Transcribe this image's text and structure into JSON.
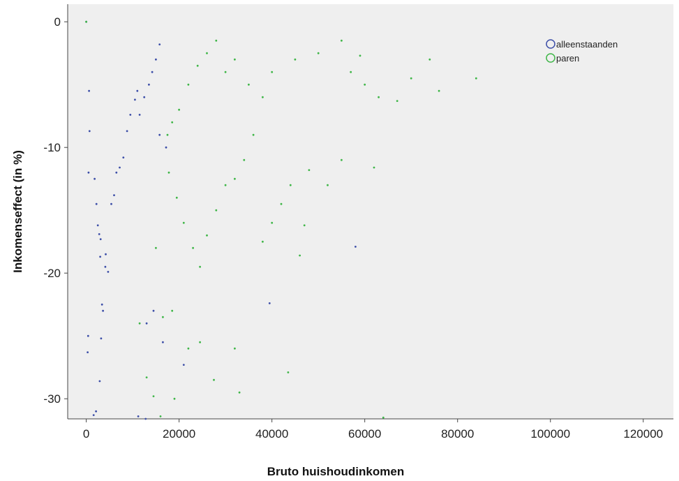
{
  "chart_data": {
    "type": "scatter",
    "xlabel": "Bruto huishoudinkomen",
    "ylabel": "Inkomenseffect (in %)",
    "xlim": [
      -4000,
      126500
    ],
    "ylim": [
      -31.6,
      1.4
    ],
    "x_ticks": [
      0,
      20000,
      40000,
      60000,
      80000,
      100000,
      120000
    ],
    "y_ticks": [
      0,
      -10,
      -20,
      -30
    ],
    "x_tick_labels": [
      "0",
      "20000",
      "40000",
      "60000",
      "80000",
      "100000",
      "120000"
    ],
    "y_tick_labels": [
      "0",
      "-10",
      "-20",
      "-30"
    ],
    "grid": false,
    "legend_position": "top-right",
    "background": "#efefef",
    "series": [
      {
        "name": "alleenstaanden",
        "color": "#3d4fa8",
        "marker": "circle",
        "points": [
          [
            0,
            0
          ],
          [
            600,
            -5.5
          ],
          [
            700,
            -8.7
          ],
          [
            500,
            -12
          ],
          [
            400,
            -25
          ],
          [
            300,
            -26.3
          ],
          [
            1800,
            -12.5
          ],
          [
            2200,
            -14.5
          ],
          [
            2500,
            -16.2
          ],
          [
            2800,
            -16.9
          ],
          [
            3100,
            -17.3
          ],
          [
            3000,
            -18.7
          ],
          [
            3400,
            -22.5
          ],
          [
            3600,
            -23
          ],
          [
            4200,
            -18.5
          ],
          [
            4100,
            -19.5
          ],
          [
            4700,
            -19.9
          ],
          [
            3200,
            -25.2
          ],
          [
            2900,
            -28.6
          ],
          [
            2100,
            -31
          ],
          [
            1600,
            -31.3
          ],
          [
            5400,
            -14.5
          ],
          [
            6000,
            -13.8
          ],
          [
            6500,
            -12
          ],
          [
            7200,
            -11.6
          ],
          [
            8000,
            -10.8
          ],
          [
            8800,
            -8.7
          ],
          [
            9500,
            -7.4
          ],
          [
            10500,
            -6.2
          ],
          [
            11000,
            -5.5
          ],
          [
            11500,
            -7.4
          ],
          [
            12500,
            -6
          ],
          [
            13500,
            -5
          ],
          [
            14200,
            -4
          ],
          [
            15000,
            -3
          ],
          [
            15800,
            -1.8
          ],
          [
            11200,
            -31.4
          ],
          [
            12800,
            -31.6
          ],
          [
            13000,
            -24
          ],
          [
            14500,
            -23
          ],
          [
            16500,
            -25.5
          ],
          [
            21000,
            -27.3
          ],
          [
            39500,
            -22.4
          ],
          [
            58000,
            -17.9
          ],
          [
            15800,
            -9
          ],
          [
            17200,
            -10
          ]
        ]
      },
      {
        "name": "paren",
        "color": "#3fb648",
        "marker": "circle",
        "points": [
          [
            0,
            0
          ],
          [
            17500,
            -9
          ],
          [
            18500,
            -8
          ],
          [
            20000,
            -7
          ],
          [
            22000,
            -5
          ],
          [
            24000,
            -3.5
          ],
          [
            26000,
            -2.5
          ],
          [
            28000,
            -1.5
          ],
          [
            30000,
            -4
          ],
          [
            32000,
            -3
          ],
          [
            35000,
            -5
          ],
          [
            38000,
            -6
          ],
          [
            40000,
            -4
          ],
          [
            45000,
            -3
          ],
          [
            50000,
            -2.5
          ],
          [
            55000,
            -1.5
          ],
          [
            57000,
            -4
          ],
          [
            60000,
            -5
          ],
          [
            63000,
            -6
          ],
          [
            67000,
            -6.3
          ],
          [
            70000,
            -4.5
          ],
          [
            74000,
            -3
          ],
          [
            76000,
            -5.5
          ],
          [
            84000,
            -4.5
          ],
          [
            17800,
            -12
          ],
          [
            19500,
            -14
          ],
          [
            21000,
            -16
          ],
          [
            23000,
            -18
          ],
          [
            24500,
            -19.5
          ],
          [
            26000,
            -17
          ],
          [
            28000,
            -15
          ],
          [
            30000,
            -13
          ],
          [
            32000,
            -12.5
          ],
          [
            34000,
            -11
          ],
          [
            36000,
            -9
          ],
          [
            38000,
            -17.5
          ],
          [
            40000,
            -16
          ],
          [
            42000,
            -14.5
          ],
          [
            44000,
            -13
          ],
          [
            47000,
            -16.2
          ],
          [
            52000,
            -13
          ],
          [
            55000,
            -11
          ],
          [
            62000,
            -11.6
          ],
          [
            15000,
            -18
          ],
          [
            16500,
            -23.5
          ],
          [
            18500,
            -23
          ],
          [
            19000,
            -30
          ],
          [
            22000,
            -26
          ],
          [
            24500,
            -25.5
          ],
          [
            27500,
            -28.5
          ],
          [
            32000,
            -26
          ],
          [
            33000,
            -29.5
          ],
          [
            43500,
            -27.9
          ],
          [
            46000,
            -18.6
          ],
          [
            64000,
            -31.5
          ],
          [
            13000,
            -28.3
          ],
          [
            14500,
            -29.8
          ],
          [
            11500,
            -24
          ],
          [
            16000,
            -31.4
          ],
          [
            48000,
            -11.8
          ],
          [
            59000,
            -2.7
          ]
        ]
      }
    ]
  }
}
